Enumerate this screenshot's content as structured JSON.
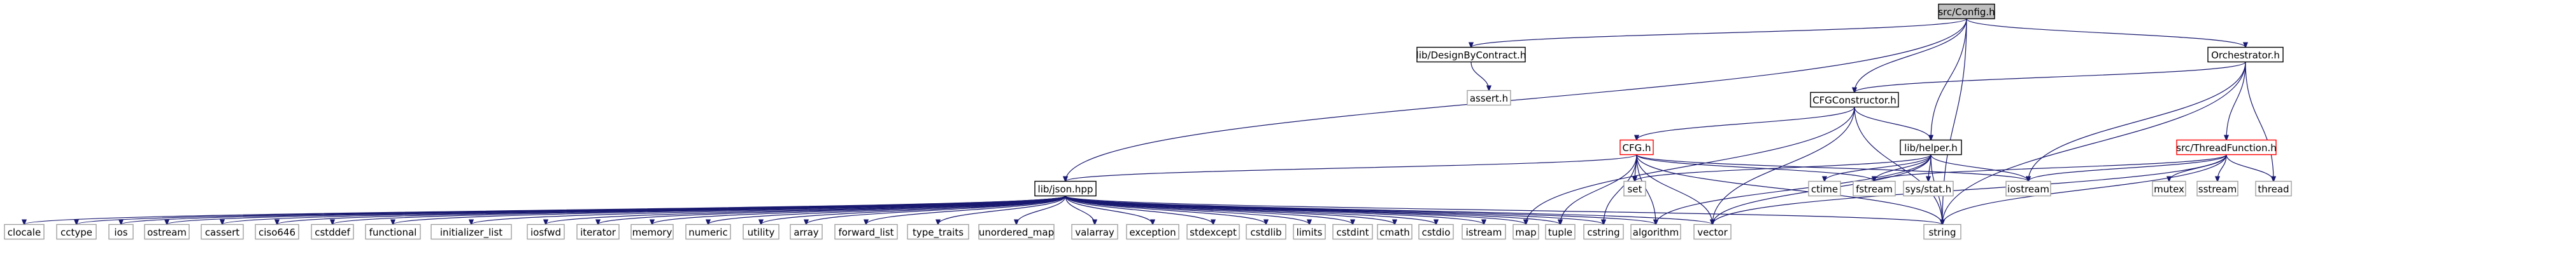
{
  "graph": {
    "nodes": [
      {
        "id": "config",
        "label": "src/Config.h",
        "style": "root"
      },
      {
        "id": "dbc",
        "label": "lib/DesignByContract.h",
        "style": "boxed"
      },
      {
        "id": "orch",
        "label": "Orchestrator.h",
        "style": "boxed"
      },
      {
        "id": "assert",
        "label": "assert.h",
        "style": "plain"
      },
      {
        "id": "cfgc",
        "label": "CFGConstructor.h",
        "style": "boxed"
      },
      {
        "id": "cfg",
        "label": "CFG.h",
        "style": "red"
      },
      {
        "id": "helper",
        "label": "lib/helper.h",
        "style": "boxed"
      },
      {
        "id": "tf",
        "label": "src/ThreadFunction.h",
        "style": "red"
      },
      {
        "id": "json",
        "label": "lib/json.hpp",
        "style": "boxed"
      },
      {
        "id": "set",
        "label": "set",
        "style": "plain"
      },
      {
        "id": "ctime",
        "label": "ctime",
        "style": "plain"
      },
      {
        "id": "fstream",
        "label": "fstream",
        "style": "plain"
      },
      {
        "id": "sysstat",
        "label": "sys/stat.h",
        "style": "plain"
      },
      {
        "id": "iostream",
        "label": "iostream",
        "style": "plain"
      },
      {
        "id": "mutex",
        "label": "mutex",
        "style": "plain"
      },
      {
        "id": "sstream",
        "label": "sstream",
        "style": "plain"
      },
      {
        "id": "thread",
        "label": "thread",
        "style": "plain"
      },
      {
        "id": "clocale",
        "label": "clocale",
        "style": "plain"
      },
      {
        "id": "cctype",
        "label": "cctype",
        "style": "plain"
      },
      {
        "id": "ios",
        "label": "ios",
        "style": "plain"
      },
      {
        "id": "ostream",
        "label": "ostream",
        "style": "plain"
      },
      {
        "id": "cassert",
        "label": "cassert",
        "style": "plain"
      },
      {
        "id": "ciso646",
        "label": "ciso646",
        "style": "plain"
      },
      {
        "id": "cstddef",
        "label": "cstddef",
        "style": "plain"
      },
      {
        "id": "functional",
        "label": "functional",
        "style": "plain"
      },
      {
        "id": "initlist",
        "label": "initializer_list",
        "style": "plain"
      },
      {
        "id": "iosfwd",
        "label": "iosfwd",
        "style": "plain"
      },
      {
        "id": "iterator",
        "label": "iterator",
        "style": "plain"
      },
      {
        "id": "memory",
        "label": "memory",
        "style": "plain"
      },
      {
        "id": "numeric",
        "label": "numeric",
        "style": "plain"
      },
      {
        "id": "utility",
        "label": "utility",
        "style": "plain"
      },
      {
        "id": "array",
        "label": "array",
        "style": "plain"
      },
      {
        "id": "fwdlist",
        "label": "forward_list",
        "style": "plain"
      },
      {
        "id": "typetraits",
        "label": "type_traits",
        "style": "plain"
      },
      {
        "id": "umap",
        "label": "unordered_map",
        "style": "plain"
      },
      {
        "id": "valarray",
        "label": "valarray",
        "style": "plain"
      },
      {
        "id": "exception",
        "label": "exception",
        "style": "plain"
      },
      {
        "id": "stdexcept",
        "label": "stdexcept",
        "style": "plain"
      },
      {
        "id": "cstdlib",
        "label": "cstdlib",
        "style": "plain"
      },
      {
        "id": "limits",
        "label": "limits",
        "style": "plain"
      },
      {
        "id": "cstdint",
        "label": "cstdint",
        "style": "plain"
      },
      {
        "id": "cmath",
        "label": "cmath",
        "style": "plain"
      },
      {
        "id": "cstdio",
        "label": "cstdio",
        "style": "plain"
      },
      {
        "id": "istream",
        "label": "istream",
        "style": "plain"
      },
      {
        "id": "map",
        "label": "map",
        "style": "plain"
      },
      {
        "id": "tuple",
        "label": "tuple",
        "style": "plain"
      },
      {
        "id": "cstring",
        "label": "cstring",
        "style": "plain"
      },
      {
        "id": "algorithm",
        "label": "algorithm",
        "style": "plain"
      },
      {
        "id": "vector",
        "label": "vector",
        "style": "plain"
      },
      {
        "id": "string",
        "label": "string",
        "style": "plain"
      }
    ],
    "edges": [
      [
        "config",
        "dbc"
      ],
      [
        "config",
        "orch"
      ],
      [
        "config",
        "cfgc"
      ],
      [
        "config",
        "helper"
      ],
      [
        "config",
        "json"
      ],
      [
        "config",
        "string"
      ],
      [
        "dbc",
        "assert"
      ],
      [
        "orch",
        "cfgc"
      ],
      [
        "orch",
        "tf"
      ],
      [
        "orch",
        "iostream"
      ],
      [
        "orch",
        "thread"
      ],
      [
        "orch",
        "string"
      ],
      [
        "cfgc",
        "cfg"
      ],
      [
        "cfgc",
        "helper"
      ],
      [
        "cfgc",
        "map"
      ],
      [
        "cfgc",
        "vector"
      ],
      [
        "cfgc",
        "string"
      ],
      [
        "cfg",
        "json"
      ],
      [
        "cfg",
        "set"
      ],
      [
        "cfg",
        "fstream"
      ],
      [
        "cfg",
        "iostream"
      ],
      [
        "cfg",
        "tuple"
      ],
      [
        "cfg",
        "cstring"
      ],
      [
        "cfg",
        "algorithm"
      ],
      [
        "cfg",
        "vector"
      ],
      [
        "cfg",
        "string"
      ],
      [
        "helper",
        "set"
      ],
      [
        "helper",
        "ctime"
      ],
      [
        "helper",
        "fstream"
      ],
      [
        "helper",
        "sysstat"
      ],
      [
        "helper",
        "iostream"
      ],
      [
        "helper",
        "algorithm"
      ],
      [
        "helper",
        "vector"
      ],
      [
        "helper",
        "string"
      ],
      [
        "tf",
        "fstream"
      ],
      [
        "tf",
        "iostream"
      ],
      [
        "tf",
        "mutex"
      ],
      [
        "tf",
        "sstream"
      ],
      [
        "tf",
        "thread"
      ],
      [
        "tf",
        "vector"
      ],
      [
        "tf",
        "string"
      ],
      [
        "json",
        "clocale"
      ],
      [
        "json",
        "cctype"
      ],
      [
        "json",
        "ios"
      ],
      [
        "json",
        "ostream"
      ],
      [
        "json",
        "cassert"
      ],
      [
        "json",
        "ciso646"
      ],
      [
        "json",
        "cstddef"
      ],
      [
        "json",
        "functional"
      ],
      [
        "json",
        "initlist"
      ],
      [
        "json",
        "iosfwd"
      ],
      [
        "json",
        "iterator"
      ],
      [
        "json",
        "memory"
      ],
      [
        "json",
        "numeric"
      ],
      [
        "json",
        "utility"
      ],
      [
        "json",
        "array"
      ],
      [
        "json",
        "fwdlist"
      ],
      [
        "json",
        "typetraits"
      ],
      [
        "json",
        "umap"
      ],
      [
        "json",
        "valarray"
      ],
      [
        "json",
        "exception"
      ],
      [
        "json",
        "stdexcept"
      ],
      [
        "json",
        "cstdlib"
      ],
      [
        "json",
        "limits"
      ],
      [
        "json",
        "cstdint"
      ],
      [
        "json",
        "cmath"
      ],
      [
        "json",
        "cstdio"
      ],
      [
        "json",
        "istream"
      ],
      [
        "json",
        "map"
      ],
      [
        "json",
        "tuple"
      ],
      [
        "json",
        "cstring"
      ],
      [
        "json",
        "algorithm"
      ],
      [
        "json",
        "vector"
      ],
      [
        "json",
        "string"
      ]
    ]
  }
}
